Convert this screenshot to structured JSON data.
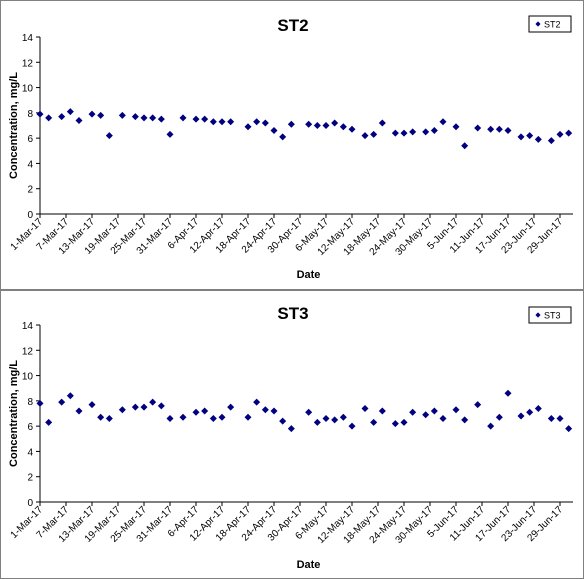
{
  "chart_data": [
    {
      "type": "scatter",
      "title": "ST2",
      "xlabel": "Date",
      "ylabel": "Concentration, mg/L",
      "ylim": [
        0,
        14
      ],
      "yticks": [
        "0",
        "2",
        "4",
        "6",
        "8",
        "10",
        "12",
        "14"
      ],
      "xlim": [
        "1-Mar-17",
        "2-Jul-17"
      ],
      "xticks": [
        "1-Mar-17",
        "7-Mar-17",
        "13-Mar-17",
        "19-Mar-17",
        "25-Mar-17",
        "31-Mar-17",
        "6-Apr-17",
        "12-Apr-17",
        "18-Apr-17",
        "24-Apr-17",
        "30-Apr-17",
        "6-May-17",
        "12-May-17",
        "18-May-17",
        "24-May-17",
        "30-May-17",
        "5-Jun-17",
        "11-Jun-17",
        "17-Jun-17",
        "23-Jun-17",
        "29-Jun-17"
      ],
      "grid": false,
      "legend": "top-right",
      "marker_color": "#000080",
      "series": [
        {
          "name": "ST2",
          "points": [
            [
              "2017-03-01",
              7.9
            ],
            [
              "2017-03-03",
              7.6
            ],
            [
              "2017-03-06",
              7.7
            ],
            [
              "2017-03-08",
              8.1
            ],
            [
              "2017-03-10",
              7.4
            ],
            [
              "2017-03-13",
              7.9
            ],
            [
              "2017-03-15",
              7.8
            ],
            [
              "2017-03-17",
              6.2
            ],
            [
              "2017-03-20",
              7.8
            ],
            [
              "2017-03-23",
              7.7
            ],
            [
              "2017-03-25",
              7.6
            ],
            [
              "2017-03-27",
              7.6
            ],
            [
              "2017-03-29",
              7.5
            ],
            [
              "2017-03-31",
              6.3
            ],
            [
              "2017-04-03",
              7.6
            ],
            [
              "2017-04-06",
              7.5
            ],
            [
              "2017-04-08",
              7.5
            ],
            [
              "2017-04-10",
              7.3
            ],
            [
              "2017-04-12",
              7.3
            ],
            [
              "2017-04-14",
              7.3
            ],
            [
              "2017-04-18",
              6.9
            ],
            [
              "2017-04-20",
              7.3
            ],
            [
              "2017-04-22",
              7.2
            ],
            [
              "2017-04-24",
              6.6
            ],
            [
              "2017-04-26",
              6.1
            ],
            [
              "2017-04-28",
              7.1
            ],
            [
              "2017-05-02",
              7.1
            ],
            [
              "2017-05-04",
              7.0
            ],
            [
              "2017-05-06",
              7.0
            ],
            [
              "2017-05-08",
              7.2
            ],
            [
              "2017-05-10",
              6.9
            ],
            [
              "2017-05-12",
              6.7
            ],
            [
              "2017-05-15",
              6.2
            ],
            [
              "2017-05-17",
              6.3
            ],
            [
              "2017-05-19",
              7.2
            ],
            [
              "2017-05-22",
              6.4
            ],
            [
              "2017-05-24",
              6.4
            ],
            [
              "2017-05-26",
              6.5
            ],
            [
              "2017-05-29",
              6.5
            ],
            [
              "2017-05-31",
              6.6
            ],
            [
              "2017-06-02",
              7.3
            ],
            [
              "2017-06-05",
              6.9
            ],
            [
              "2017-06-07",
              5.4
            ],
            [
              "2017-06-10",
              6.8
            ],
            [
              "2017-06-13",
              6.7
            ],
            [
              "2017-06-15",
              6.7
            ],
            [
              "2017-06-17",
              6.6
            ],
            [
              "2017-06-20",
              6.1
            ],
            [
              "2017-06-22",
              6.2
            ],
            [
              "2017-06-24",
              5.9
            ],
            [
              "2017-06-27",
              5.8
            ],
            [
              "2017-06-29",
              6.3
            ],
            [
              "2017-07-01",
              6.4
            ]
          ]
        }
      ]
    },
    {
      "type": "scatter",
      "title": "ST3",
      "xlabel": "Date",
      "ylabel": "Concentration, mg/L",
      "ylim": [
        0,
        14
      ],
      "yticks": [
        "0",
        "2",
        "4",
        "6",
        "8",
        "10",
        "12",
        "14"
      ],
      "xlim": [
        "1-Mar-17",
        "2-Jul-17"
      ],
      "xticks": [
        "1-Mar-17",
        "7-Mar-17",
        "13-Mar-17",
        "19-Mar-17",
        "25-Mar-17",
        "31-Mar-17",
        "6-Apr-17",
        "12-Apr-17",
        "18-Apr-17",
        "24-Apr-17",
        "30-Apr-17",
        "6-May-17",
        "12-May-17",
        "18-May-17",
        "24-May-17",
        "30-May-17",
        "5-Jun-17",
        "11-Jun-17",
        "17-Jun-17",
        "23-Jun-17",
        "29-Jun-17"
      ],
      "grid": false,
      "legend": "top-right",
      "marker_color": "#000080",
      "series": [
        {
          "name": "ST3",
          "points": [
            [
              "2017-03-01",
              7.8
            ],
            [
              "2017-03-03",
              6.3
            ],
            [
              "2017-03-06",
              7.9
            ],
            [
              "2017-03-08",
              8.4
            ],
            [
              "2017-03-10",
              7.2
            ],
            [
              "2017-03-13",
              7.7
            ],
            [
              "2017-03-15",
              6.7
            ],
            [
              "2017-03-17",
              6.6
            ],
            [
              "2017-03-20",
              7.3
            ],
            [
              "2017-03-23",
              7.5
            ],
            [
              "2017-03-25",
              7.5
            ],
            [
              "2017-03-27",
              7.9
            ],
            [
              "2017-03-29",
              7.6
            ],
            [
              "2017-03-31",
              6.6
            ],
            [
              "2017-04-03",
              6.7
            ],
            [
              "2017-04-06",
              7.1
            ],
            [
              "2017-04-08",
              7.2
            ],
            [
              "2017-04-10",
              6.6
            ],
            [
              "2017-04-12",
              6.7
            ],
            [
              "2017-04-14",
              7.5
            ],
            [
              "2017-04-18",
              6.7
            ],
            [
              "2017-04-20",
              7.9
            ],
            [
              "2017-04-22",
              7.3
            ],
            [
              "2017-04-24",
              7.2
            ],
            [
              "2017-04-26",
              6.4
            ],
            [
              "2017-04-28",
              5.8
            ],
            [
              "2017-05-02",
              7.1
            ],
            [
              "2017-05-04",
              6.3
            ],
            [
              "2017-05-06",
              6.6
            ],
            [
              "2017-05-08",
              6.5
            ],
            [
              "2017-05-10",
              6.7
            ],
            [
              "2017-05-12",
              6.0
            ],
            [
              "2017-05-15",
              7.4
            ],
            [
              "2017-05-17",
              6.3
            ],
            [
              "2017-05-19",
              7.2
            ],
            [
              "2017-05-22",
              6.2
            ],
            [
              "2017-05-24",
              6.3
            ],
            [
              "2017-05-26",
              7.1
            ],
            [
              "2017-05-29",
              6.9
            ],
            [
              "2017-05-31",
              7.2
            ],
            [
              "2017-06-02",
              6.6
            ],
            [
              "2017-06-05",
              7.3
            ],
            [
              "2017-06-07",
              6.5
            ],
            [
              "2017-06-10",
              7.7
            ],
            [
              "2017-06-13",
              6.0
            ],
            [
              "2017-06-15",
              6.7
            ],
            [
              "2017-06-17",
              8.6
            ],
            [
              "2017-06-20",
              6.8
            ],
            [
              "2017-06-22",
              7.1
            ],
            [
              "2017-06-24",
              7.4
            ],
            [
              "2017-06-27",
              6.6
            ],
            [
              "2017-06-29",
              6.6
            ],
            [
              "2017-07-01",
              5.8
            ]
          ]
        }
      ]
    }
  ]
}
